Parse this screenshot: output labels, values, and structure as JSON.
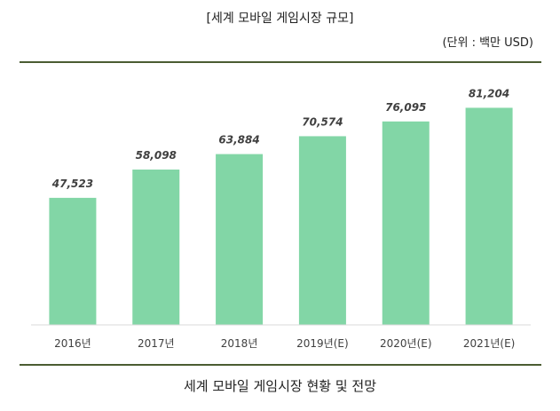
{
  "header": {
    "title": "[세계 모바일 게임시장 규모]",
    "unit": "(단위 : 백만 USD)"
  },
  "caption": "세계 모바일 게임시장 현황 및 전망",
  "chart_data": {
    "type": "bar",
    "categories": [
      "2016년",
      "2017년",
      "2018년",
      "2019년(E)",
      "2020년(E)",
      "2021년(E)"
    ],
    "values": [
      47523,
      58098,
      63884,
      70574,
      76095,
      81204
    ],
    "value_labels": [
      "47,523",
      "58,098",
      "63,884",
      "70,574",
      "76,095",
      "81,204"
    ],
    "title": "[세계 모바일 게임시장 규모]",
    "ylim": [
      0,
      85000
    ],
    "grid": false,
    "bar_color": "#82d6a6",
    "axis_color": "#d9d9d9"
  }
}
